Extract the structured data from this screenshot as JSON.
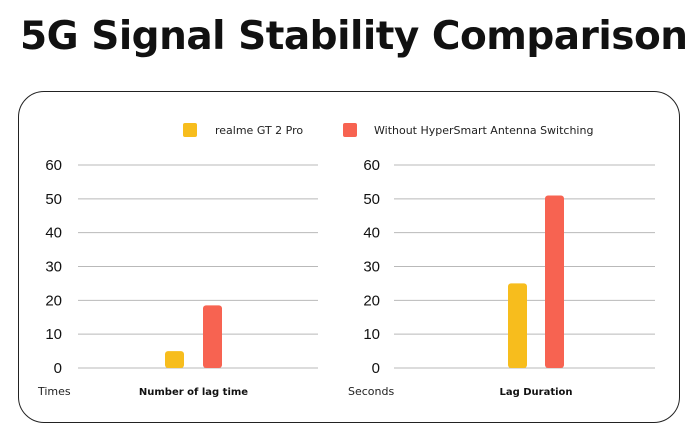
{
  "page": {
    "title": "5G Signal Stability Comparison"
  },
  "legend": [
    {
      "label": "realme GT 2 Pro",
      "color": "#F7BD1D"
    },
    {
      "label": "Without HyperSmart Antenna Switching",
      "color": "#F76351"
    }
  ],
  "chart_data": [
    {
      "type": "bar",
      "unit_label": "Times",
      "categories": [
        "Number of lag time"
      ],
      "series": [
        {
          "name": "realme GT 2 Pro",
          "color": "#F7BD1D",
          "values": [
            5
          ]
        },
        {
          "name": "Without HyperSmart Antenna Switching",
          "color": "#F76351",
          "values": [
            18.5
          ]
        }
      ],
      "ylim": [
        0,
        60
      ],
      "yticks": [
        0,
        10,
        20,
        30,
        40,
        50,
        60
      ],
      "grid": true
    },
    {
      "type": "bar",
      "unit_label": "Seconds",
      "categories": [
        "Lag Duration"
      ],
      "series": [
        {
          "name": "realme GT 2 Pro",
          "color": "#F7BD1D",
          "values": [
            25
          ]
        },
        {
          "name": "Without HyperSmart Antenna Switching",
          "color": "#F76351",
          "values": [
            51
          ]
        }
      ],
      "ylim": [
        0,
        60
      ],
      "yticks": [
        0,
        10,
        20,
        30,
        40,
        50,
        60
      ],
      "grid": true
    }
  ]
}
